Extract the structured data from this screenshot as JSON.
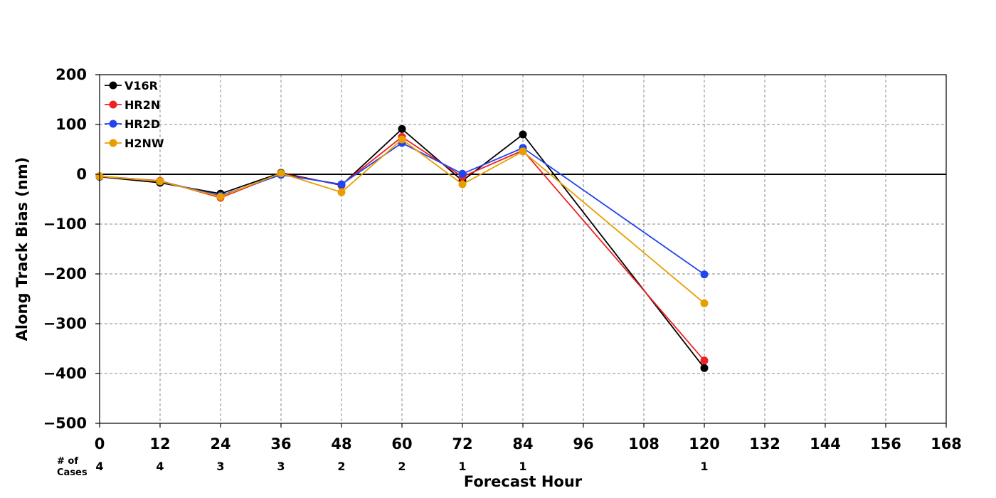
{
  "chart_data": {
    "type": "line",
    "title": "",
    "xlabel": "Forecast Hour",
    "ylabel": "Along Track Bias (nm)",
    "xlim": [
      0,
      168
    ],
    "ylim": [
      -500,
      200
    ],
    "xticks": [
      0,
      12,
      24,
      36,
      48,
      60,
      72,
      84,
      96,
      108,
      120,
      132,
      144,
      156,
      168
    ],
    "yticks": [
      200,
      100,
      0,
      -100,
      -200,
      -300,
      -400,
      -500
    ],
    "grid": true,
    "legend_position": "top-left",
    "zero_line": true,
    "cases_label_line1": "# of",
    "cases_label_line2": "Cases",
    "cases": [
      {
        "x": 0,
        "n": "4"
      },
      {
        "x": 12,
        "n": "4"
      },
      {
        "x": 24,
        "n": "3"
      },
      {
        "x": 36,
        "n": "3"
      },
      {
        "x": 48,
        "n": "2"
      },
      {
        "x": 60,
        "n": "2"
      },
      {
        "x": 72,
        "n": "1"
      },
      {
        "x": 84,
        "n": "1"
      },
      {
        "x": 120,
        "n": "1"
      }
    ],
    "x": [
      0,
      12,
      24,
      36,
      48,
      60,
      72,
      84,
      120
    ],
    "series": [
      {
        "name": "V16R",
        "color": "#000000",
        "values": [
          -5,
          -17,
          -39,
          3,
          -22,
          91,
          -13,
          80,
          -389
        ]
      },
      {
        "name": "HR2N",
        "color": "#ee2222",
        "values": [
          -4,
          -13,
          -47,
          1,
          -21,
          75,
          -5,
          48,
          -374
        ]
      },
      {
        "name": "HR2D",
        "color": "#2244ee",
        "values": [
          -4,
          -14,
          -43,
          -1,
          -20,
          63,
          1,
          53,
          -201
        ]
      },
      {
        "name": "H2NW",
        "color": "#e69f00",
        "values": [
          -4,
          -14,
          -45,
          2,
          -36,
          70,
          -20,
          46,
          -259
        ]
      }
    ]
  }
}
